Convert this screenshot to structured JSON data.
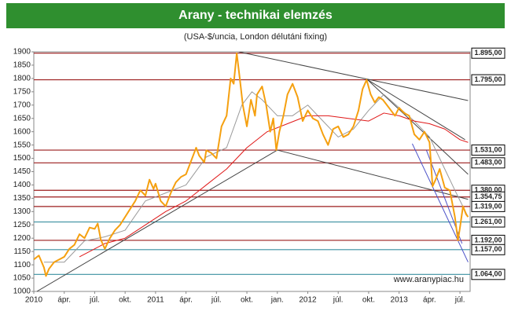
{
  "chart_data": {
    "type": "line",
    "title": "Arany - technikai elemzés",
    "subtitle": "(USA-$/uncia, London délutáni fixing)",
    "watermark": "www.aranypiac.hu",
    "xlim": [
      0,
      43
    ],
    "xticks": [
      {
        "value": 0,
        "label": "2010"
      },
      {
        "value": 3,
        "label": "ápr."
      },
      {
        "value": 6,
        "label": "júl."
      },
      {
        "value": 9,
        "label": "okt."
      },
      {
        "value": 12,
        "label": "2011"
      },
      {
        "value": 15,
        "label": "ápr."
      },
      {
        "value": 18,
        "label": "júl."
      },
      {
        "value": 21,
        "label": "okt."
      },
      {
        "value": 24,
        "label": "jan."
      },
      {
        "value": 27,
        "label": "2012"
      },
      {
        "value": 30,
        "label": "júl."
      },
      {
        "value": 33,
        "label": "okt."
      },
      {
        "value": 36,
        "label": "2013"
      },
      {
        "value": 39,
        "label": "ápr."
      },
      {
        "value": 42,
        "label": "júl."
      }
    ],
    "ylim": [
      1000,
      1900
    ],
    "yticks": [
      1000,
      1050,
      1100,
      1150,
      1200,
      1250,
      1300,
      1350,
      1400,
      1450,
      1500,
      1550,
      1600,
      1650,
      1700,
      1750,
      1800,
      1850,
      1900
    ],
    "levels": [
      {
        "value": 1895,
        "label": "1.895,00",
        "color": "#9b1c1c"
      },
      {
        "value": 1795,
        "label": "1.795,00",
        "color": "#9b1c1c"
      },
      {
        "value": 1531,
        "label": "1.531,00",
        "color": "#9b1c1c"
      },
      {
        "value": 1483,
        "label": "1.483,00",
        "color": "#9b1c1c"
      },
      {
        "value": 1380,
        "label": "1.380,00",
        "color": "#9b1c1c"
      },
      {
        "value": 1354.75,
        "label": "1.354,75",
        "color": "#9b1c1c"
      },
      {
        "value": 1319,
        "label": "1.319,00",
        "color": "#9b1c1c"
      },
      {
        "value": 1261,
        "label": "1.261,00",
        "color": "#3a8fa0"
      },
      {
        "value": 1192,
        "label": "1.192,00",
        "color": "#9b1c1c"
      },
      {
        "value": 1157,
        "label": "1.157,00",
        "color": "#3a8fa0"
      },
      {
        "value": 1064,
        "label": "1.064,00",
        "color": "#3a8fa0"
      }
    ],
    "series": [
      {
        "color": "#9a9a9a",
        "width": 1,
        "x": [
          1,
          3,
          5,
          7,
          9,
          11,
          13,
          15,
          17,
          19,
          20.5,
          21.5,
          22.5,
          24,
          25.5,
          27,
          28.5,
          30,
          31.5,
          33,
          34.5,
          36,
          37.5,
          39,
          40.5,
          41.5,
          42.8
        ],
        "values": [
          1110,
          1110,
          1190,
          1205,
          1230,
          1340,
          1370,
          1400,
          1505,
          1540,
          1700,
          1750,
          1720,
          1660,
          1660,
          1700,
          1640,
          1580,
          1610,
          1680,
          1740,
          1690,
          1640,
          1580,
          1460,
          1380,
          1280
        ]
      },
      {
        "color": "#e01818",
        "width": 1,
        "x": [
          4.5,
          7,
          9,
          11,
          13,
          15,
          17,
          19,
          21,
          23,
          25,
          27,
          29,
          31,
          33,
          34.5,
          36,
          37.5,
          39,
          40.5,
          42,
          42.8
        ],
        "values": [
          1130,
          1180,
          1200,
          1250,
          1300,
          1340,
          1400,
          1460,
          1540,
          1600,
          1630,
          1660,
          1660,
          1650,
          1640,
          1670,
          1660,
          1640,
          1630,
          1610,
          1570,
          1560
        ]
      },
      {
        "color": "#f5a010",
        "width": 2,
        "x": [
          0,
          0.5,
          1,
          1.2,
          1.5,
          2,
          2.5,
          3,
          3.5,
          4,
          4.5,
          5,
          5.5,
          6,
          6.3,
          6.6,
          7,
          7.5,
          8,
          8.5,
          9,
          9.5,
          10,
          10.5,
          11,
          11.4,
          11.8,
          12,
          12.5,
          13,
          13.5,
          14,
          14.5,
          15,
          15.5,
          16,
          16.3,
          16.8,
          17,
          17.5,
          18,
          18.5,
          19,
          19.4,
          19.7,
          20,
          20.3,
          20.6,
          21,
          21.4,
          21.8,
          22,
          22.5,
          22.9,
          23.3,
          23.6,
          23.9,
          24.2,
          24.6,
          25,
          25.5,
          26,
          26.5,
          27,
          27.5,
          28,
          28.5,
          29,
          29.5,
          30,
          30.5,
          31,
          31.5,
          32,
          32.4,
          32.8,
          33.2,
          33.6,
          34,
          34.4,
          34.8,
          35.2,
          35.6,
          36,
          36.5,
          37,
          37.5,
          38,
          38.5,
          39,
          39.3,
          39.6,
          40,
          40.5,
          41,
          41.5,
          41.8,
          42,
          42.3,
          42.6,
          42.8
        ],
        "values": [
          1120,
          1135,
          1090,
          1058,
          1085,
          1110,
          1120,
          1130,
          1160,
          1175,
          1215,
          1200,
          1240,
          1235,
          1255,
          1195,
          1160,
          1200,
          1230,
          1250,
          1280,
          1310,
          1340,
          1380,
          1360,
          1420,
          1385,
          1405,
          1340,
          1320,
          1370,
          1410,
          1430,
          1440,
          1490,
          1540,
          1510,
          1485,
          1530,
          1520,
          1500,
          1620,
          1660,
          1800,
          1780,
          1895,
          1800,
          1700,
          1620,
          1720,
          1660,
          1740,
          1770,
          1700,
          1600,
          1650,
          1531,
          1600,
          1660,
          1740,
          1780,
          1730,
          1640,
          1680,
          1650,
          1640,
          1590,
          1550,
          1610,
          1620,
          1580,
          1590,
          1620,
          1680,
          1760,
          1795,
          1740,
          1710,
          1730,
          1720,
          1700,
          1680,
          1660,
          1690,
          1670,
          1660,
          1590,
          1570,
          1600,
          1560,
          1395,
          1420,
          1460,
          1390,
          1380,
          1280,
          1192,
          1240,
          1320,
          1290,
          1280
        ]
      }
    ],
    "trendlines": [
      {
        "color": "#444444",
        "x": [
          20.2,
          42.8
        ],
        "values": [
          1900,
          1717
        ]
      },
      {
        "color": "#444444",
        "x": [
          32.9,
          42.5
        ],
        "values": [
          1795,
          1570
        ]
      },
      {
        "color": "#444444",
        "x": [
          32.9,
          42.8
        ],
        "values": [
          1795,
          1440
        ]
      },
      {
        "color": "#444444",
        "x": [
          24,
          42.8
        ],
        "values": [
          1531,
          1346
        ]
      },
      {
        "color": "#444444",
        "x": [
          0.3,
          24
        ],
        "values": [
          1000,
          1531
        ]
      },
      {
        "color": "#4a50c8",
        "x": [
          37.3,
          42.8
        ],
        "values": [
          1555,
          1110
        ]
      },
      {
        "color": "#4a50c8",
        "x": [
          38.7,
          42.2
        ],
        "values": [
          1530,
          1180
        ]
      }
    ]
  }
}
